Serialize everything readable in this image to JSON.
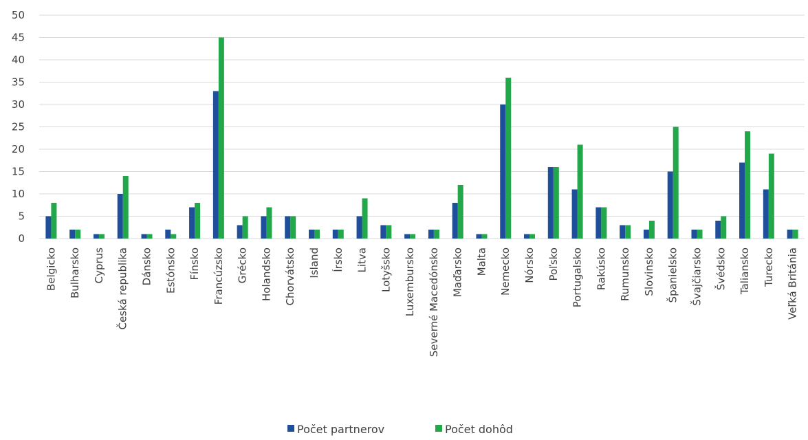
{
  "chart_data": {
    "type": "bar",
    "categories": [
      "Belgicko",
      "Bulharsko",
      "Cyprus",
      "Česká republika",
      "Dánsko",
      "Estónsko",
      "Fínsko",
      "Francúzsko",
      "Grécko",
      "Holandsko",
      "Chorvátsko",
      "Island",
      "Írsko",
      "Litva",
      "Lotyšsko",
      "Luxembursko",
      "Severné Macedónsko",
      "Maďarsko",
      "Malta",
      "Nemecko",
      "Nórsko",
      "Poľsko",
      "Portugalsko",
      "Rakúsko",
      "Rumunsko",
      "Slovinsko",
      "Španielsko",
      "Švajčiarsko",
      "Švédsko",
      "Taliansko",
      "Turecko",
      "Veľká Británia"
    ],
    "series": [
      {
        "name": "Počet partnerov",
        "color": "#1f4e9a",
        "values": [
          5,
          2,
          1,
          10,
          1,
          2,
          7,
          33,
          3,
          5,
          5,
          2,
          2,
          5,
          3,
          1,
          2,
          8,
          1,
          30,
          1,
          16,
          11,
          7,
          3,
          2,
          15,
          2,
          4,
          17,
          11,
          2
        ]
      },
      {
        "name": "Počet dohôd",
        "color": "#22a84a",
        "values": [
          8,
          2,
          1,
          14,
          1,
          1,
          8,
          45,
          5,
          7,
          5,
          2,
          2,
          9,
          3,
          1,
          2,
          12,
          1,
          36,
          1,
          16,
          21,
          7,
          3,
          4,
          25,
          2,
          5,
          24,
          19,
          2
        ]
      }
    ],
    "yticks": [
      0,
      5,
      10,
      15,
      20,
      25,
      30,
      35,
      40,
      45,
      50
    ],
    "ylim": [
      0,
      50
    ],
    "grid": true,
    "legend_position": "bottom"
  }
}
